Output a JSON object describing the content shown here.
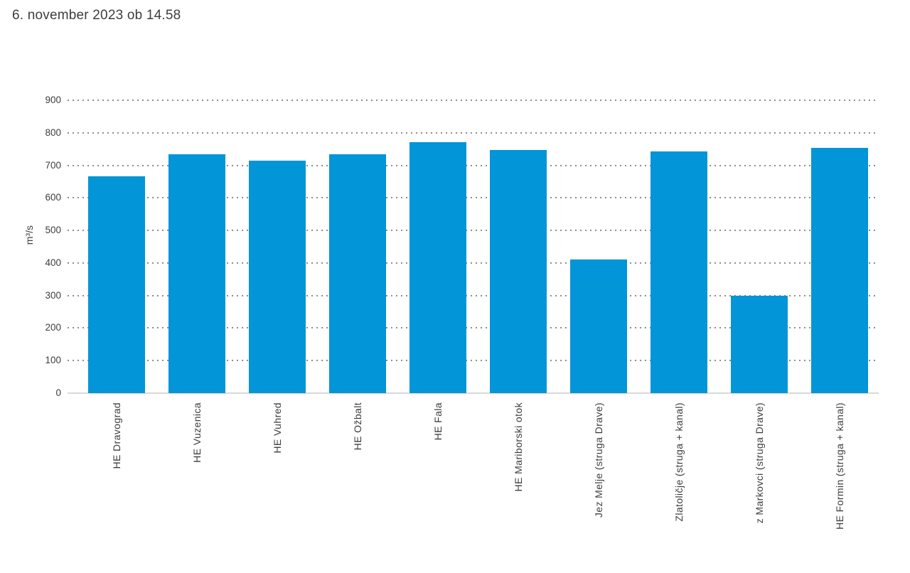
{
  "page": {
    "title": "6. november 2023 ob 14.58"
  },
  "colors": {
    "bar": "#0295d7",
    "text": "#3d3d3d",
    "gridline_dotted": "#8d8d8d",
    "baseline": "#d9d9d9",
    "background": "#ffffff"
  },
  "chart_data": {
    "type": "bar",
    "title": "6. november 2023 ob 14.58",
    "xlabel": "",
    "ylabel": "m³/s",
    "categories": [
      "HE Dravograd",
      "HE Vuzenica",
      "HE Vuhred",
      "HE Ožbalt",
      "HE Fala",
      "HE Mariborski otok",
      "Jez Melje (struga Drave)",
      "Zlatoličje (struga + kanal)",
      "z Markovci (struga Drave)",
      "HE Formin (struga + kanal)"
    ],
    "values": [
      667,
      735,
      715,
      733,
      771,
      748,
      411,
      743,
      300,
      754
    ],
    "yticks": [
      0,
      100,
      200,
      300,
      400,
      500,
      600,
      700,
      800,
      900
    ],
    "ylim": [
      0,
      900
    ],
    "grid": "horizontal-dotted",
    "legend": "none",
    "series_color": "#0295d7"
  }
}
